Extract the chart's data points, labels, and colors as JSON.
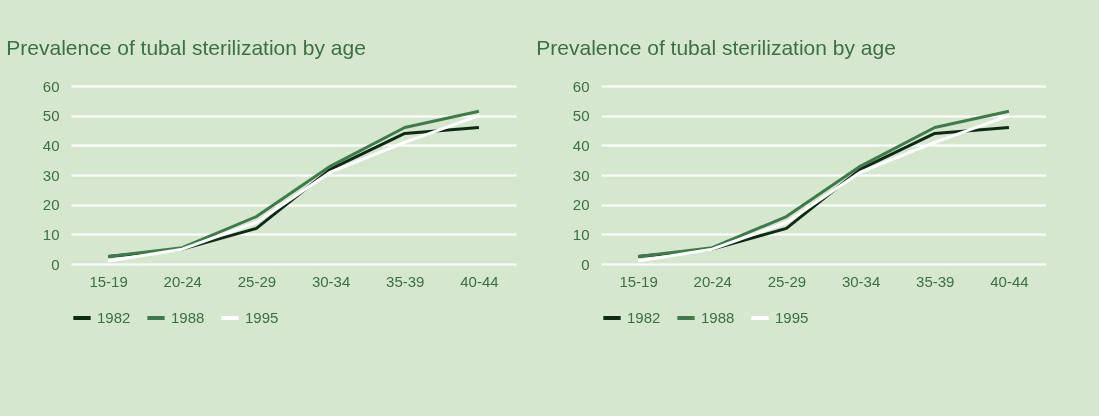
{
  "chart_data": [
    {
      "type": "line",
      "title": "Prevalence of tubal sterilization by age",
      "categories": [
        "15-19",
        "20-24",
        "25-29",
        "30-34",
        "35-39",
        "40-44"
      ],
      "ylim": [
        0,
        60
      ],
      "yticks": [
        0,
        10,
        20,
        30,
        40,
        50,
        60
      ],
      "grid": "y",
      "legend": "bottom",
      "series": [
        {
          "name": "1982",
          "color": "#0f2a14",
          "values": [
            2.5,
            5,
            12,
            32,
            44,
            46
          ]
        },
        {
          "name": "1988",
          "color": "#3f7a4c",
          "values": [
            2.5,
            5.5,
            16,
            33,
            46,
            51.5
          ]
        },
        {
          "name": "1995",
          "color": "#ffffff",
          "values": [
            1,
            5,
            14,
            31,
            41,
            50
          ]
        }
      ]
    },
    {
      "type": "line",
      "title": "Prevalence of tubal sterilization by age",
      "categories": [
        "15-19",
        "20-24",
        "25-29",
        "30-34",
        "35-39",
        "40-44"
      ],
      "ylim": [
        0,
        60
      ],
      "yticks": [
        0,
        10,
        20,
        30,
        40,
        50,
        60
      ],
      "grid": "y",
      "legend": "bottom",
      "series": [
        {
          "name": "1982",
          "color": "#0f2a14",
          "values": [
            2.5,
            5,
            12,
            32,
            44,
            46
          ]
        },
        {
          "name": "1988",
          "color": "#3f7a4c",
          "values": [
            2.5,
            5.5,
            16,
            33,
            46,
            51.5
          ]
        },
        {
          "name": "1995",
          "color": "#ffffff",
          "values": [
            1,
            5,
            14,
            31,
            41,
            50
          ]
        }
      ]
    }
  ]
}
